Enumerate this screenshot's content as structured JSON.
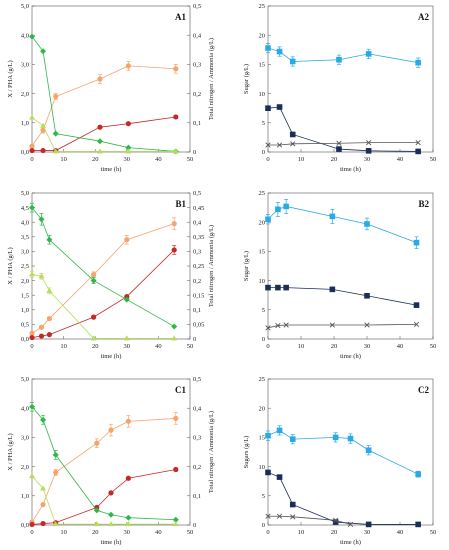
{
  "chart_data": [
    {
      "id": "A1",
      "type": "line",
      "label": "A1",
      "xlabel": "time (h)",
      "ylabel": "X / PHA (g/L)",
      "y2label": "Total nitrogen / Ammonia (g/L)",
      "xlim": [
        0,
        50
      ],
      "xticks": [
        0,
        10,
        20,
        30,
        40,
        50
      ],
      "ylim": [
        0,
        5
      ],
      "yticks": [
        "0,0",
        "1,0",
        "2,0",
        "3,0",
        "4,0",
        "5,0"
      ],
      "y2lim": [
        0,
        0.5
      ],
      "y2ticks": [
        "0",
        "0,1",
        "0,2",
        "0,3",
        "0,4",
        "0,5"
      ],
      "series": [
        {
          "axis": "left",
          "color": "#f5a46c",
          "marker": "circle",
          "x": [
            0,
            3.5,
            7.5,
            21.5,
            30.5,
            45.5
          ],
          "y": [
            0.2,
            0.75,
            1.9,
            2.5,
            2.95,
            2.85
          ],
          "err": [
            0.05,
            0.1,
            0.1,
            0.15,
            0.15,
            0.15
          ]
        },
        {
          "axis": "left",
          "color": "#c62828",
          "marker": "circle",
          "x": [
            0,
            3.5,
            7.5,
            21.5,
            30.5,
            45.5
          ],
          "y": [
            0.05,
            0.05,
            0.05,
            0.85,
            0.97,
            1.2
          ],
          "err": [
            0,
            0,
            0,
            0.04,
            0.04,
            0.05
          ]
        },
        {
          "axis": "right",
          "color": "#2fb84a",
          "marker": "diamond",
          "x": [
            0,
            3.5,
            7.5,
            21.5,
            30.5,
            45.5
          ],
          "y": [
            0.395,
            0.345,
            0.063,
            0.037,
            0.015,
            0.002
          ],
          "err": [
            0,
            0,
            0,
            0,
            0,
            0
          ]
        },
        {
          "axis": "right",
          "color": "#b7dc5a",
          "marker": "triangle",
          "x": [
            0,
            3.5,
            7.5,
            21.5,
            30.5,
            45.5
          ],
          "y": [
            0.118,
            0.09,
            0.002,
            0.002,
            0.002,
            0.002
          ],
          "err": [
            0,
            0,
            0,
            0,
            0,
            0
          ]
        }
      ]
    },
    {
      "id": "A2",
      "type": "line",
      "label": "A2",
      "xlabel": "time (h)",
      "ylabel": "Sugar (g/L)",
      "y2label": "",
      "xlim": [
        0,
        50
      ],
      "xticks": [
        0,
        10,
        20,
        30,
        40,
        50
      ],
      "ylim": [
        0,
        25
      ],
      "yticks": [
        "0",
        "5",
        "10",
        "15",
        "20",
        "25"
      ],
      "series": [
        {
          "axis": "left",
          "color": "#29a9e8",
          "marker": "square",
          "x": [
            0,
            3.5,
            7.5,
            21.5,
            30.5,
            45.5
          ],
          "y": [
            17.8,
            17.2,
            15.5,
            15.8,
            16.8,
            15.3
          ],
          "err": [
            0.8,
            0.8,
            0.8,
            0.8,
            0.8,
            0.8
          ]
        },
        {
          "axis": "left",
          "color": "#1b2e5a",
          "marker": "square",
          "x": [
            0,
            3.5,
            7.5,
            21.5,
            30.5,
            45.5
          ],
          "y": [
            7.5,
            7.7,
            3.0,
            0.5,
            0.2,
            0.1
          ],
          "err": [
            0.2,
            0.2,
            0.2,
            0.1,
            0.1,
            0.1
          ]
        },
        {
          "axis": "left",
          "color": "#555555",
          "marker": "x",
          "x": [
            0,
            3.5,
            7.5,
            21.5,
            30.5,
            45.5
          ],
          "y": [
            1.2,
            1.2,
            1.4,
            1.5,
            1.6,
            1.6
          ],
          "err": [
            0,
            0,
            0,
            0,
            0,
            0
          ]
        }
      ]
    },
    {
      "id": "B1",
      "type": "line",
      "label": "B1",
      "xlabel": "time (h)",
      "ylabel": "X / PHA (g/L)",
      "y2label": "Total nitrogen / Ammonia (g/L)",
      "xlim": [
        0,
        50
      ],
      "xticks": [
        0,
        10,
        20,
        30,
        40,
        50
      ],
      "ylim": [
        0,
        5
      ],
      "yticks": [
        "0,0",
        "0,5",
        "1,0",
        "1,5",
        "2,0",
        "2,5",
        "3,0",
        "3,5",
        "4,0",
        "4,5",
        "5,0"
      ],
      "y2lim": [
        0,
        0.5
      ],
      "y2ticks": [
        "0",
        "0,05",
        "0,1",
        "0,15",
        "0,2",
        "0,25",
        "0,3",
        "0,35",
        "0,4",
        "0,45",
        "0,5"
      ],
      "series": [
        {
          "axis": "left",
          "color": "#f5a46c",
          "marker": "circle",
          "x": [
            0,
            3,
            5.5,
            19.5,
            30,
            45
          ],
          "y": [
            0.2,
            0.4,
            0.7,
            2.2,
            3.4,
            3.95
          ],
          "err": [
            0.05,
            0.05,
            0.05,
            0.1,
            0.15,
            0.2
          ]
        },
        {
          "axis": "left",
          "color": "#c62828",
          "marker": "circle",
          "x": [
            0,
            3,
            5.5,
            19.5,
            30,
            45
          ],
          "y": [
            0.05,
            0.1,
            0.15,
            0.75,
            1.45,
            3.05
          ],
          "err": [
            0,
            0,
            0,
            0.05,
            0.05,
            0.15
          ]
        },
        {
          "axis": "right",
          "color": "#2fb84a",
          "marker": "diamond",
          "x": [
            0,
            3,
            5.5,
            19.5,
            30,
            45
          ],
          "y": [
            0.45,
            0.41,
            0.34,
            0.2,
            0.135,
            0.043
          ],
          "err": [
            0.015,
            0.02,
            0.015,
            0.01,
            0,
            0
          ]
        },
        {
          "axis": "right",
          "color": "#b7dc5a",
          "marker": "triangle",
          "x": [
            0,
            3,
            5.5,
            19.5,
            30,
            45
          ],
          "y": [
            0.222,
            0.215,
            0.165,
            0.002,
            0.002,
            0.002
          ],
          "err": [
            0.01,
            0.01,
            0.01,
            0,
            0,
            0
          ]
        }
      ]
    },
    {
      "id": "B2",
      "type": "line",
      "label": "B2",
      "xlabel": "time (h)",
      "ylabel": "Sugar (g/L)",
      "y2label": "",
      "xlim": [
        0,
        50
      ],
      "xticks": [
        0,
        10,
        20,
        30,
        40,
        50
      ],
      "ylim": [
        0,
        25
      ],
      "yticks": [
        "0",
        "5",
        "10",
        "15",
        "20",
        "25"
      ],
      "series": [
        {
          "axis": "left",
          "color": "#29a9e8",
          "marker": "square",
          "x": [
            0,
            3,
            5.5,
            19.5,
            30,
            45
          ],
          "y": [
            20.5,
            22.2,
            22.7,
            21.0,
            19.7,
            16.5
          ],
          "err": [
            0.8,
            1.2,
            1.2,
            1.2,
            1.0,
            1.0
          ]
        },
        {
          "axis": "left",
          "color": "#1b2e5a",
          "marker": "square",
          "x": [
            0,
            3,
            5.5,
            19.5,
            30,
            45
          ],
          "y": [
            8.8,
            8.8,
            8.8,
            8.5,
            7.4,
            5.8
          ],
          "err": [
            0.3,
            0.3,
            0.3,
            0.3,
            0.3,
            0.4
          ]
        },
        {
          "axis": "left",
          "color": "#555555",
          "marker": "x",
          "x": [
            0,
            3,
            5.5,
            19.5,
            30,
            45
          ],
          "y": [
            1.9,
            2.3,
            2.4,
            2.4,
            2.4,
            2.5
          ],
          "err": [
            0,
            0,
            0,
            0,
            0,
            0
          ]
        }
      ]
    },
    {
      "id": "C1",
      "type": "line",
      "label": "C1",
      "xlabel": "time (h)",
      "ylabel": "X / PHA (g/L)",
      "y2label": "Total nitrogen / Ammonia (g/L)",
      "xlim": [
        0,
        50
      ],
      "xticks": [
        0,
        10,
        20,
        30,
        40,
        50
      ],
      "ylim": [
        0,
        5
      ],
      "yticks": [
        "0,0",
        "1,0",
        "2,0",
        "3,0",
        "4,0",
        "5,0"
      ],
      "y2lim": [
        0,
        0.5
      ],
      "y2ticks": [
        "0",
        "0,1",
        "0,2",
        "0,3",
        "0,4",
        "0,5"
      ],
      "series": [
        {
          "axis": "left",
          "color": "#f5a46c",
          "marker": "circle",
          "x": [
            0,
            3.5,
            7.5,
            20.5,
            25,
            30.5,
            45.5
          ],
          "y": [
            0.1,
            0.7,
            1.8,
            2.8,
            3.25,
            3.55,
            3.65
          ],
          "err": [
            0.05,
            0.05,
            0.1,
            0.15,
            0.2,
            0.2,
            0.2
          ]
        },
        {
          "axis": "left",
          "color": "#c62828",
          "marker": "circle",
          "x": [
            0,
            3.5,
            7.5,
            20.5,
            25,
            30.5,
            45.5
          ],
          "y": [
            0.02,
            0.05,
            0.08,
            0.6,
            1.1,
            1.6,
            1.9
          ],
          "err": [
            0,
            0,
            0,
            0.04,
            0.04,
            0.05,
            0.05
          ]
        },
        {
          "axis": "right",
          "color": "#2fb84a",
          "marker": "diamond",
          "x": [
            0,
            3.5,
            7.5,
            20.5,
            25,
            30.5,
            45.5
          ],
          "y": [
            0.405,
            0.36,
            0.24,
            0.05,
            0.035,
            0.025,
            0.018
          ],
          "err": [
            0.015,
            0.015,
            0.015,
            0,
            0,
            0,
            0
          ]
        },
        {
          "axis": "right",
          "color": "#b7dc5a",
          "marker": "triangle",
          "x": [
            0,
            3.5,
            7.5,
            20.5,
            25,
            30.5,
            45.5
          ],
          "y": [
            0.168,
            0.125,
            0.003,
            0.003,
            0.003,
            0.003,
            0.003
          ],
          "err": [
            0,
            0,
            0,
            0,
            0,
            0,
            0
          ]
        }
      ]
    },
    {
      "id": "C2",
      "type": "line",
      "label": "C2",
      "xlabel": "time (h)",
      "ylabel": "Sugars (g/L)",
      "y2label": "",
      "xlim": [
        0,
        50
      ],
      "xticks": [
        0,
        10,
        20,
        30,
        40,
        50
      ],
      "ylim": [
        0,
        25
      ],
      "yticks": [
        "0",
        "5",
        "10",
        "15",
        "20",
        "25"
      ],
      "series": [
        {
          "axis": "left",
          "color": "#29a9e8",
          "marker": "square",
          "x": [
            0,
            3.5,
            7.5,
            20.5,
            25,
            30.5,
            45.5
          ],
          "y": [
            15.3,
            16.2,
            14.7,
            15.0,
            14.8,
            12.8,
            8.7
          ],
          "err": [
            0.8,
            0.8,
            0.8,
            0.8,
            0.8,
            0.8,
            0.5
          ]
        },
        {
          "axis": "left",
          "color": "#1b2e5a",
          "marker": "square",
          "x": [
            0,
            3.5,
            7.5,
            20.5,
            30.5,
            45.5
          ],
          "y": [
            9.0,
            8.2,
            3.5,
            0.5,
            0.1,
            0.1
          ],
          "err": [
            0.2,
            0.2,
            0.2,
            0.1,
            0,
            0
          ]
        },
        {
          "axis": "left",
          "color": "#555555",
          "marker": "x",
          "x": [
            0,
            3.5,
            7.5,
            20.5,
            25
          ],
          "y": [
            1.5,
            1.5,
            1.4,
            0.8,
            0.1
          ],
          "err": [
            0,
            0,
            0,
            0,
            0
          ]
        }
      ]
    }
  ]
}
